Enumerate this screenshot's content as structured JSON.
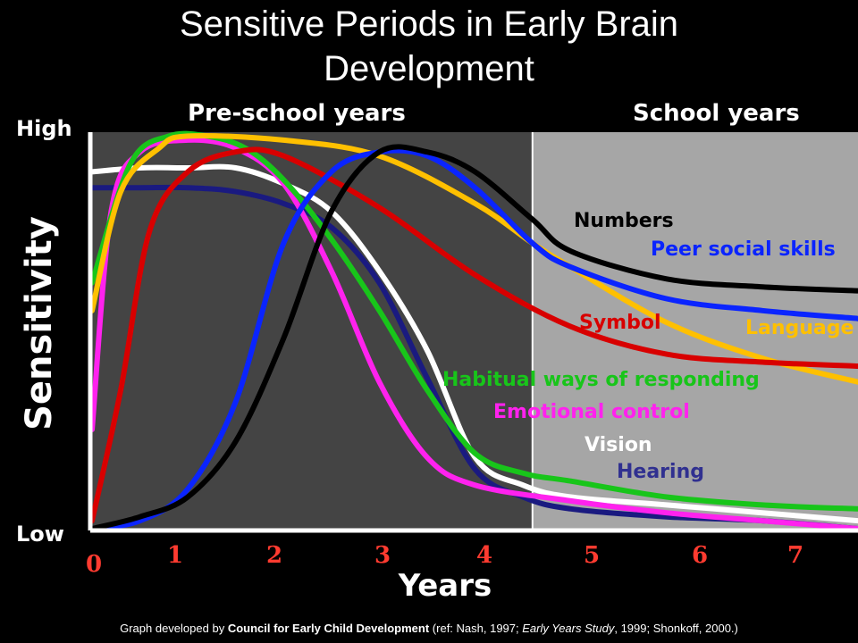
{
  "title_line1": "Sensitive Periods in Early Brain",
  "title_line2": "Development",
  "credit": {
    "prefix": "Graph developed by ",
    "org": "Council for Early Child Development",
    "mid1": " (ref: Nash, 1997; ",
    "ref_italic": "Early Years Study",
    "mid2": ", 1999; Shonkoff, 2000.)"
  },
  "chart_data": {
    "type": "line",
    "xlabel": "Years",
    "ylabel": "Sensitivity",
    "y_high_label": "High",
    "y_low_label": "Low",
    "xlim": [
      0,
      8
    ],
    "ylim": [
      0,
      1
    ],
    "x_ticks": [
      {
        "label": "0",
        "value": 0
      },
      {
        "label": "1",
        "value": 1
      },
      {
        "label": "2",
        "value": 2
      },
      {
        "label": "3",
        "value": 3
      },
      {
        "label": "4",
        "value": 4
      },
      {
        "label": "5",
        "value": 5
      },
      {
        "label": "6",
        "value": 6
      },
      {
        "label": "7",
        "value": 7
      }
    ],
    "regions": [
      {
        "label": "Pre-school years",
        "x_start": 0,
        "x_end": 4.6,
        "color": "#444444"
      },
      {
        "label": "School years",
        "x_start": 4.6,
        "x_end": 8,
        "color": "#a6a6a6"
      }
    ],
    "series": [
      {
        "name": "Hearing",
        "color": "#1a1a80",
        "points": [
          [
            0.0,
            0.86
          ],
          [
            0.5,
            0.86
          ],
          [
            1.0,
            0.86
          ],
          [
            1.5,
            0.85
          ],
          [
            2.0,
            0.82
          ],
          [
            2.5,
            0.76
          ],
          [
            3.0,
            0.62
          ],
          [
            3.5,
            0.38
          ],
          [
            4.0,
            0.15
          ],
          [
            4.5,
            0.08
          ],
          [
            5.0,
            0.05
          ],
          [
            6.0,
            0.03
          ],
          [
            7.0,
            0.02
          ],
          [
            8.0,
            0.0
          ]
        ]
      },
      {
        "name": "Vision",
        "color": "#ffffff",
        "points": [
          [
            0.0,
            0.9
          ],
          [
            0.5,
            0.91
          ],
          [
            1.0,
            0.91
          ],
          [
            1.5,
            0.91
          ],
          [
            2.0,
            0.87
          ],
          [
            2.5,
            0.8
          ],
          [
            3.0,
            0.65
          ],
          [
            3.5,
            0.45
          ],
          [
            4.0,
            0.18
          ],
          [
            4.5,
            0.11
          ],
          [
            5.0,
            0.08
          ],
          [
            6.0,
            0.06
          ],
          [
            7.0,
            0.04
          ],
          [
            8.0,
            0.02
          ]
        ]
      },
      {
        "name": "Emotional control",
        "color": "#ff22ee",
        "points": [
          [
            0.0,
            0.25
          ],
          [
            0.2,
            0.8
          ],
          [
            0.5,
            0.95
          ],
          [
            1.0,
            0.98
          ],
          [
            1.5,
            0.96
          ],
          [
            2.0,
            0.87
          ],
          [
            2.5,
            0.65
          ],
          [
            3.0,
            0.37
          ],
          [
            3.5,
            0.18
          ],
          [
            4.0,
            0.11
          ],
          [
            5.0,
            0.07
          ],
          [
            6.0,
            0.04
          ],
          [
            7.0,
            0.02
          ],
          [
            8.0,
            0.0
          ]
        ]
      },
      {
        "name": "Habitual ways of responding",
        "color": "#18c51a",
        "points": [
          [
            0.0,
            0.62
          ],
          [
            0.4,
            0.92
          ],
          [
            0.8,
            0.99
          ],
          [
            1.2,
            0.99
          ],
          [
            1.6,
            0.96
          ],
          [
            2.0,
            0.88
          ],
          [
            2.5,
            0.73
          ],
          [
            3.0,
            0.55
          ],
          [
            3.5,
            0.35
          ],
          [
            4.0,
            0.19
          ],
          [
            4.5,
            0.14
          ],
          [
            5.0,
            0.12
          ],
          [
            6.0,
            0.08
          ],
          [
            7.0,
            0.06
          ],
          [
            8.0,
            0.05
          ]
        ]
      },
      {
        "name": "Language",
        "color": "#ffc000",
        "points": [
          [
            0.0,
            0.55
          ],
          [
            0.3,
            0.85
          ],
          [
            0.7,
            0.96
          ],
          [
            1.0,
            0.99
          ],
          [
            2.0,
            0.98
          ],
          [
            3.0,
            0.94
          ],
          [
            4.0,
            0.82
          ],
          [
            4.6,
            0.72
          ],
          [
            5.0,
            0.66
          ],
          [
            6.0,
            0.52
          ],
          [
            7.0,
            0.43
          ],
          [
            8.0,
            0.37
          ]
        ]
      },
      {
        "name": "Symbol",
        "color": "#d80000",
        "points": [
          [
            0.0,
            0.02
          ],
          [
            0.3,
            0.35
          ],
          [
            0.6,
            0.75
          ],
          [
            1.0,
            0.9
          ],
          [
            1.5,
            0.95
          ],
          [
            2.0,
            0.94
          ],
          [
            3.0,
            0.81
          ],
          [
            4.0,
            0.64
          ],
          [
            5.0,
            0.51
          ],
          [
            6.0,
            0.44
          ],
          [
            7.0,
            0.42
          ],
          [
            8.0,
            0.41
          ]
        ]
      },
      {
        "name": "Peer social skills",
        "color": "#0a24ff",
        "points": [
          [
            0.0,
            0.0
          ],
          [
            0.5,
            0.02
          ],
          [
            1.0,
            0.1
          ],
          [
            1.5,
            0.32
          ],
          [
            2.0,
            0.72
          ],
          [
            2.5,
            0.9
          ],
          [
            3.0,
            0.95
          ],
          [
            3.5,
            0.94
          ],
          [
            4.0,
            0.86
          ],
          [
            4.6,
            0.72
          ],
          [
            5.0,
            0.66
          ],
          [
            6.0,
            0.58
          ],
          [
            7.0,
            0.55
          ],
          [
            8.0,
            0.53
          ]
        ]
      },
      {
        "name": "Numbers",
        "color": "#000000",
        "points": [
          [
            0.0,
            0.0
          ],
          [
            0.5,
            0.03
          ],
          [
            1.0,
            0.08
          ],
          [
            1.5,
            0.22
          ],
          [
            2.0,
            0.48
          ],
          [
            2.5,
            0.8
          ],
          [
            3.0,
            0.95
          ],
          [
            3.5,
            0.95
          ],
          [
            4.0,
            0.9
          ],
          [
            4.6,
            0.78
          ],
          [
            5.0,
            0.7
          ],
          [
            6.0,
            0.63
          ],
          [
            7.0,
            0.61
          ],
          [
            8.0,
            0.6
          ]
        ]
      }
    ]
  }
}
